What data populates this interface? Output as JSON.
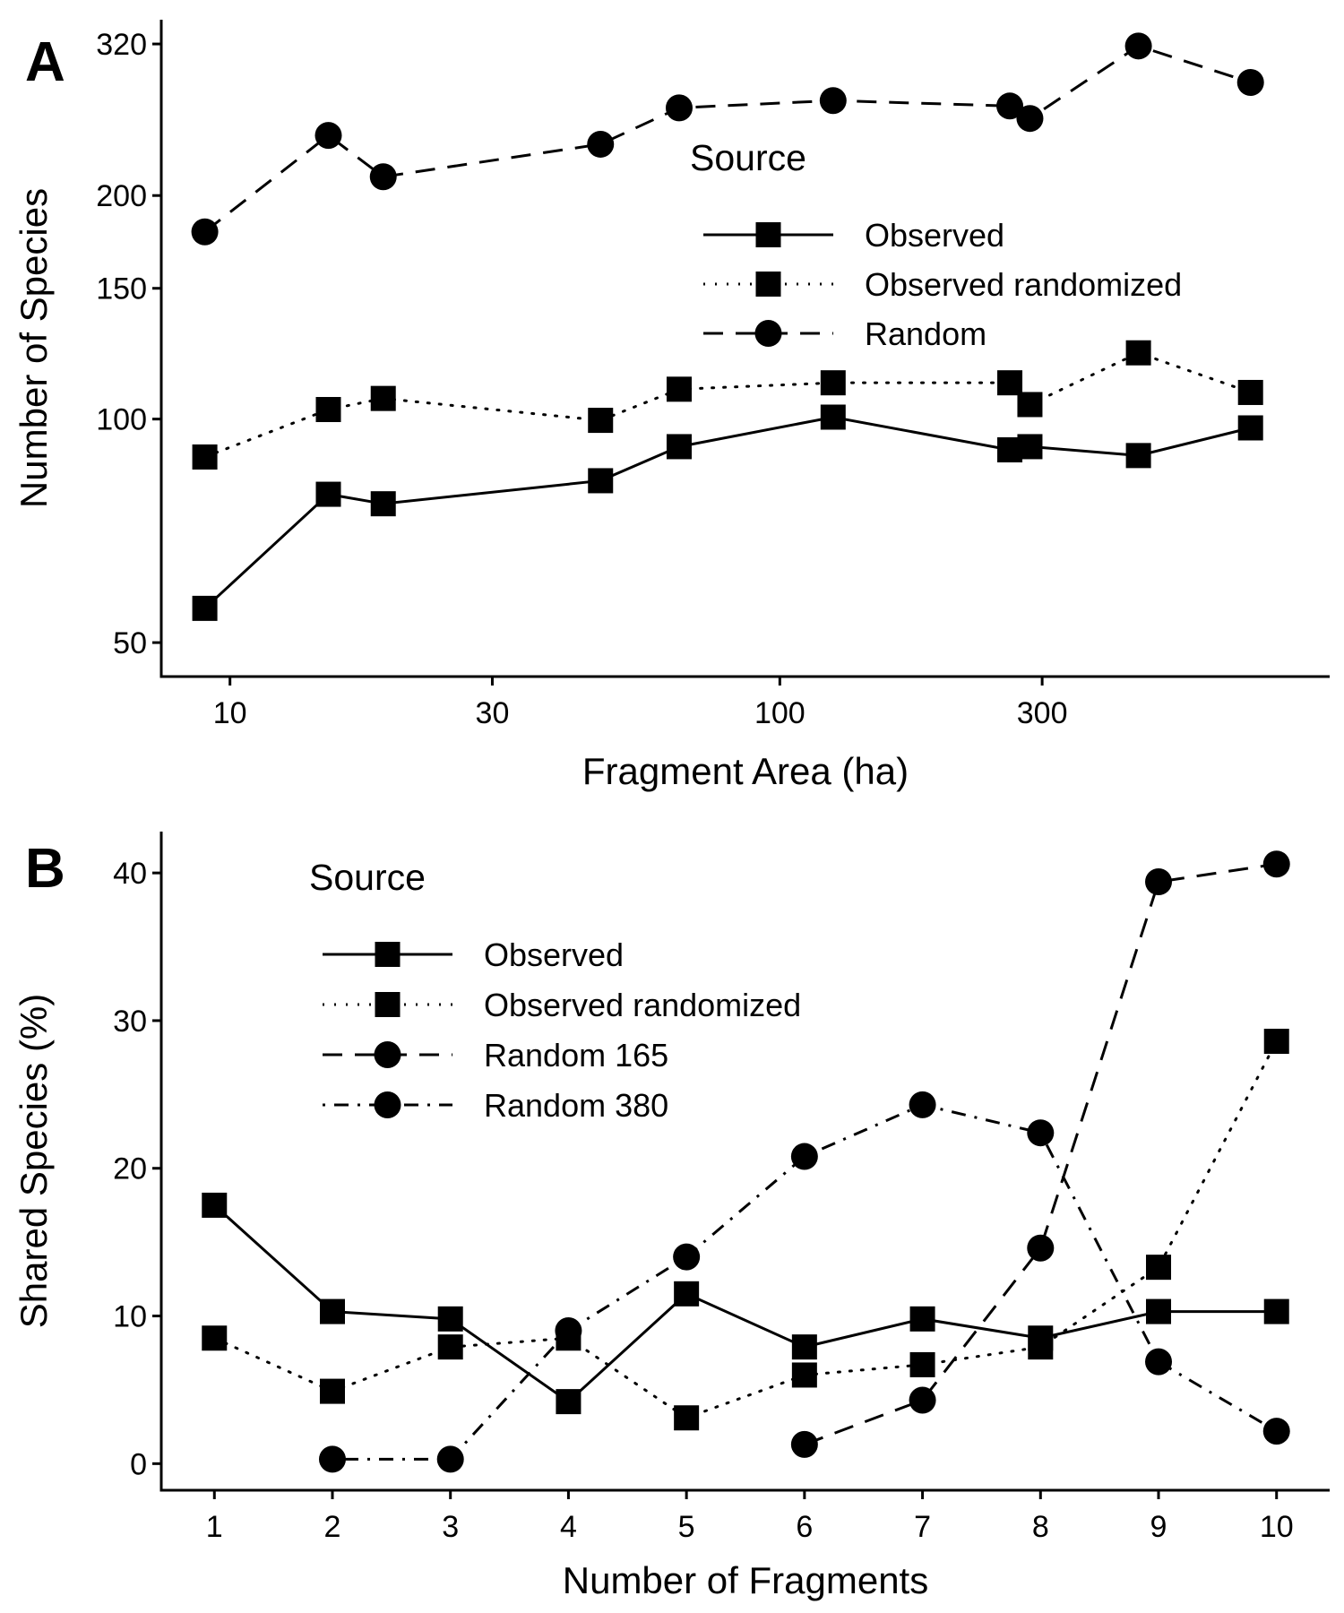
{
  "chart_data": [
    {
      "panel": "A",
      "type": "line",
      "title": "",
      "xlabel": "Fragment Area (ha)",
      "ylabel": "Number of Species",
      "xscale": "log",
      "yscale": "log",
      "xlim": [
        7.5,
        1000
      ],
      "ylim": [
        45,
        345
      ],
      "xticks": [
        10,
        30,
        100,
        300
      ],
      "xtick_labels": [
        "10",
        "30",
        "100",
        "300"
      ],
      "yticks": [
        50,
        100,
        150,
        200,
        320
      ],
      "ytick_labels": [
        "50",
        "100",
        "150",
        "200",
        "320"
      ],
      "grid": false,
      "legend": {
        "title": "Source",
        "placement": "top-right",
        "entries": [
          "Observed",
          "Observed randomized",
          "Random"
        ]
      },
      "x": [
        9.0,
        15.1,
        19.0,
        47.2,
        65.6,
        125,
        262,
        285,
        449,
        718
      ],
      "series": [
        {
          "name": "Observed",
          "line": "solid",
          "marker": "square",
          "values": [
            55.6,
            79.2,
            76.9,
            82.6,
            91.8,
            100.6,
            90.9,
            91.8,
            89.3,
            97.3
          ]
        },
        {
          "name": "Observed randomized",
          "line": "dotted",
          "marker": "square",
          "values": [
            88.9,
            103.0,
            106.6,
            99.6,
            109.7,
            111.9,
            111.9,
            104.6,
            122.8,
            108.6
          ]
        },
        {
          "name": "Random",
          "line": "dashed",
          "marker": "circle",
          "values": [
            178.7,
            241.0,
            212.0,
            234.5,
            262.5,
            268.5,
            264.0,
            254.0,
            318.0,
            284.0
          ]
        }
      ]
    },
    {
      "panel": "B",
      "type": "line",
      "title": "",
      "xlabel": "Number of Fragments",
      "ylabel": "Shared Species (%)",
      "xscale": "linear",
      "yscale": "linear",
      "xlim": [
        0.55,
        10.45
      ],
      "ylim": [
        -1.8,
        42.8
      ],
      "xticks": [
        1,
        2,
        3,
        4,
        5,
        6,
        7,
        8,
        9,
        10
      ],
      "xtick_labels": [
        "1",
        "2",
        "3",
        "4",
        "5",
        "6",
        "7",
        "8",
        "9",
        "10"
      ],
      "yticks": [
        0,
        10,
        20,
        30,
        40
      ],
      "ytick_labels": [
        "0",
        "10",
        "20",
        "30",
        "40"
      ],
      "grid": false,
      "legend": {
        "title": "Source",
        "placement": "top-left",
        "entries": [
          "Observed",
          "Observed randomized",
          "Random 165",
          "Random 380"
        ]
      },
      "x": [
        1,
        2,
        3,
        4,
        5,
        6,
        7,
        8,
        9,
        10
      ],
      "series": [
        {
          "name": "Observed",
          "line": "solid",
          "marker": "square",
          "values": [
            17.5,
            10.3,
            9.8,
            4.2,
            11.5,
            7.9,
            9.8,
            8.5,
            10.3,
            10.3
          ]
        },
        {
          "name": "Observed randomized",
          "line": "dotted",
          "marker": "square",
          "values": [
            8.5,
            4.9,
            7.9,
            8.5,
            3.1,
            6.0,
            6.7,
            7.9,
            13.3,
            28.6
          ]
        },
        {
          "name": "Random 165",
          "line": "dashed",
          "marker": "circle",
          "values": [
            null,
            null,
            null,
            null,
            null,
            1.3,
            4.3,
            14.6,
            39.4,
            40.6
          ]
        },
        {
          "name": "Random 380",
          "line": "dotdash",
          "marker": "circle",
          "values": [
            null,
            0.3,
            0.3,
            9.0,
            14.0,
            20.8,
            24.3,
            22.4,
            6.9,
            2.2
          ]
        }
      ]
    }
  ]
}
